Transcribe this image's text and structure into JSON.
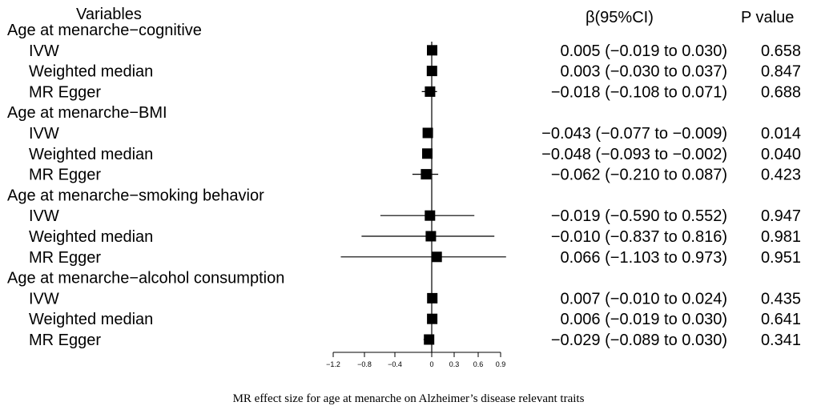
{
  "header": {
    "variables": "Variables",
    "beta_ci": "β(95%CI)",
    "p_value": "P value"
  },
  "caption": "MR effect size for age at menarche  on Alzheimer’s disease relevant traits",
  "chart_data": {
    "type": "forest",
    "title": "MR effect size for age at menarche  on Alzheimer’s disease relevant traits",
    "xlim": [
      -1.2,
      0.9
    ],
    "ticks": [
      -1.2,
      -0.8,
      -0.4,
      0,
      0.3,
      0.6,
      0.9
    ],
    "tick_labels": [
      "−1.2",
      "−0.8",
      "−0.4",
      "0",
      "0.3",
      "0.6",
      "0.9"
    ],
    "groups": [
      {
        "label": "Age at menarche−cognitive",
        "rows": [
          {
            "method": "IVW",
            "beta": 0.005,
            "lo": -0.019,
            "hi": 0.03,
            "ci_text": "0.005 (−0.019 to 0.030)",
            "p": "0.658"
          },
          {
            "method": "Weighted median",
            "beta": 0.003,
            "lo": -0.03,
            "hi": 0.037,
            "ci_text": "0.003 (−0.030 to 0.037)",
            "p": "0.847"
          },
          {
            "method": "MR Egger",
            "beta": -0.018,
            "lo": -0.108,
            "hi": 0.071,
            "ci_text": "−0.018 (−0.108 to 0.071)",
            "p": "0.688"
          }
        ]
      },
      {
        "label": "Age at menarche−BMI",
        "rows": [
          {
            "method": "IVW",
            "beta": -0.043,
            "lo": -0.077,
            "hi": -0.009,
            "ci_text": "−0.043 (−0.077 to −0.009)",
            "p": "0.014"
          },
          {
            "method": "Weighted median",
            "beta": -0.048,
            "lo": -0.093,
            "hi": -0.002,
            "ci_text": "−0.048 (−0.093 to −0.002)",
            "p": "0.040"
          },
          {
            "method": "MR Egger",
            "beta": -0.062,
            "lo": -0.21,
            "hi": 0.087,
            "ci_text": "−0.062 (−0.210 to 0.087)",
            "p": "0.423"
          }
        ]
      },
      {
        "label": "Age at menarche−smoking behavior",
        "rows": [
          {
            "method": "IVW",
            "beta": -0.019,
            "lo": -0.59,
            "hi": 0.552,
            "ci_text": "−0.019 (−0.590 to 0.552)",
            "p": "0.947"
          },
          {
            "method": "Weighted median",
            "beta": -0.01,
            "lo": -0.837,
            "hi": 0.816,
            "ci_text": "−0.010 (−0.837 to 0.816)",
            "p": "0.981"
          },
          {
            "method": "MR Egger",
            "beta": 0.066,
            "lo": -1.103,
            "hi": 0.973,
            "ci_text": "0.066 (−1.103 to 0.973)",
            "p": "0.951"
          }
        ]
      },
      {
        "label": "Age at menarche−alcohol consumption",
        "rows": [
          {
            "method": "IVW",
            "beta": 0.007,
            "lo": -0.01,
            "hi": 0.024,
            "ci_text": "0.007 (−0.010 to 0.024)",
            "p": "0.435"
          },
          {
            "method": "Weighted median",
            "beta": 0.006,
            "lo": -0.019,
            "hi": 0.03,
            "ci_text": "0.006 (−0.019 to 0.030)",
            "p": "0.641"
          },
          {
            "method": "MR Egger",
            "beta": -0.029,
            "lo": -0.089,
            "hi": 0.03,
            "ci_text": "−0.029 (−0.089 to 0.030)",
            "p": "0.341"
          }
        ]
      }
    ]
  }
}
